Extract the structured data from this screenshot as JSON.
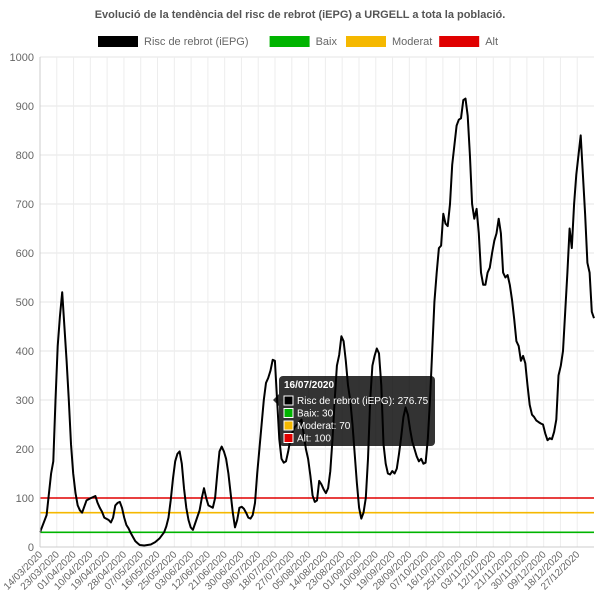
{
  "chart_data": {
    "type": "line",
    "title": "Evolució de la tendència del risc de rebrot (iEPG) a URGELL a tota la població.",
    "ylim": [
      0,
      1000
    ],
    "y_ticks": [
      0,
      100,
      200,
      300,
      400,
      500,
      600,
      700,
      800,
      900,
      1000
    ],
    "x_tick_labels": [
      "14/03/2020",
      "23/03/2020",
      "01/04/2020",
      "10/04/2020",
      "19/04/2020",
      "28/04/2020",
      "07/05/2020",
      "16/05/2020",
      "25/05/2020",
      "03/06/2020",
      "12/06/2020",
      "21/06/2020",
      "30/06/2020",
      "09/07/2020",
      "18/07/2020",
      "27/07/2020",
      "05/08/2020",
      "14/08/2020",
      "23/08/2020",
      "01/09/2020",
      "10/09/2020",
      "19/09/2020",
      "28/09/2020",
      "07/10/2020",
      "16/10/2020",
      "25/10/2020",
      "03/11/2020",
      "12/11/2020",
      "21/11/2020",
      "30/11/2020",
      "09/12/2020",
      "18/12/2020",
      "27/12/2020"
    ],
    "grid": true,
    "legend_position": "top",
    "series": [
      {
        "name": "Risc de rebrot (iEPG)",
        "color": "#000000",
        "values": [
          [
            0,
            30
          ],
          [
            3,
            65
          ],
          [
            5,
            150
          ],
          [
            6,
            175
          ],
          [
            7,
            300
          ],
          [
            8,
            410
          ],
          [
            9,
            470
          ],
          [
            10,
            520
          ],
          [
            11,
            450
          ],
          [
            12,
            380
          ],
          [
            13,
            300
          ],
          [
            14,
            210
          ],
          [
            15,
            150
          ],
          [
            16,
            110
          ],
          [
            17,
            85
          ],
          [
            18,
            75
          ],
          [
            19,
            70
          ],
          [
            21,
            95
          ],
          [
            23,
            100
          ],
          [
            25,
            104
          ],
          [
            26,
            90
          ],
          [
            27,
            80
          ],
          [
            28,
            72
          ],
          [
            29,
            60
          ],
          [
            31,
            55
          ],
          [
            32,
            50
          ],
          [
            33,
            60
          ],
          [
            34,
            85
          ],
          [
            35,
            90
          ],
          [
            36,
            92
          ],
          [
            37,
            80
          ],
          [
            38,
            60
          ],
          [
            39,
            45
          ],
          [
            40,
            38
          ],
          [
            41,
            28
          ],
          [
            42,
            20
          ],
          [
            43,
            12
          ],
          [
            44,
            8
          ],
          [
            45,
            4
          ],
          [
            47,
            3
          ],
          [
            50,
            5
          ],
          [
            52,
            10
          ],
          [
            54,
            18
          ],
          [
            56,
            30
          ],
          [
            57,
            42
          ],
          [
            58,
            60
          ],
          [
            59,
            95
          ],
          [
            60,
            140
          ],
          [
            61,
            175
          ],
          [
            62,
            190
          ],
          [
            63,
            195
          ],
          [
            64,
            170
          ],
          [
            65,
            120
          ],
          [
            66,
            80
          ],
          [
            67,
            55
          ],
          [
            68,
            40
          ],
          [
            69,
            35
          ],
          [
            70,
            48
          ],
          [
            72,
            75
          ],
          [
            73,
            100
          ],
          [
            74,
            120
          ],
          [
            75,
            100
          ],
          [
            76,
            85
          ],
          [
            78,
            80
          ],
          [
            79,
            100
          ],
          [
            80,
            150
          ],
          [
            81,
            195
          ],
          [
            82,
            205
          ],
          [
            83,
            195
          ],
          [
            84,
            180
          ],
          [
            85,
            150
          ],
          [
            86,
            110
          ],
          [
            87,
            70
          ],
          [
            88,
            40
          ],
          [
            89,
            55
          ],
          [
            90,
            80
          ],
          [
            91,
            82
          ],
          [
            92,
            78
          ],
          [
            93,
            70
          ],
          [
            94,
            60
          ],
          [
            95,
            58
          ],
          [
            96,
            65
          ],
          [
            97,
            90
          ],
          [
            98,
            150
          ],
          [
            99,
            200
          ],
          [
            100,
            250
          ],
          [
            101,
            300
          ],
          [
            102,
            335
          ],
          [
            103,
            345
          ],
          [
            104,
            360
          ],
          [
            105,
            382
          ],
          [
            106,
            380
          ],
          [
            107,
            300
          ],
          [
            108,
            220
          ],
          [
            109,
            180
          ],
          [
            110,
            172
          ],
          [
            111,
            175
          ],
          [
            112,
            195
          ],
          [
            113,
            220
          ],
          [
            114,
            235
          ],
          [
            115,
            245
          ],
          [
            116,
            250
          ],
          [
            117,
            255
          ],
          [
            118,
            260
          ],
          [
            119,
            230
          ],
          [
            120,
            200
          ],
          [
            121,
            180
          ],
          [
            122,
            145
          ],
          [
            123,
            105
          ],
          [
            124,
            92
          ],
          [
            125,
            95
          ],
          [
            126,
            135
          ],
          [
            127,
            128
          ],
          [
            128,
            118
          ],
          [
            129,
            110
          ],
          [
            130,
            120
          ],
          [
            131,
            155
          ],
          [
            132,
            220
          ],
          [
            133,
            300
          ],
          [
            134,
            370
          ],
          [
            135,
            392
          ],
          [
            136,
            430
          ],
          [
            137,
            420
          ],
          [
            138,
            380
          ],
          [
            139,
            330
          ],
          [
            140,
            300
          ],
          [
            141,
            250
          ],
          [
            142,
            190
          ],
          [
            143,
            130
          ],
          [
            144,
            80
          ],
          [
            145,
            58
          ],
          [
            146,
            70
          ],
          [
            147,
            100
          ],
          [
            148,
            180
          ],
          [
            149,
            300
          ],
          [
            150,
            370
          ],
          [
            151,
            390
          ],
          [
            152,
            405
          ],
          [
            153,
            395
          ],
          [
            154,
            330
          ],
          [
            155,
            210
          ],
          [
            156,
            170
          ],
          [
            157,
            150
          ],
          [
            158,
            148
          ],
          [
            159,
            155
          ],
          [
            160,
            150
          ],
          [
            161,
            160
          ],
          [
            162,
            190
          ],
          [
            163,
            225
          ],
          [
            164,
            265
          ],
          [
            165,
            285
          ],
          [
            166,
            270
          ],
          [
            167,
            240
          ],
          [
            168,
            215
          ],
          [
            169,
            200
          ],
          [
            170,
            185
          ],
          [
            171,
            175
          ],
          [
            172,
            180
          ],
          [
            173,
            170
          ],
          [
            174,
            172
          ],
          [
            175,
            220
          ],
          [
            176,
            300
          ],
          [
            177,
            400
          ],
          [
            178,
            500
          ],
          [
            179,
            560
          ],
          [
            180,
            610
          ],
          [
            181,
            615
          ],
          [
            182,
            680
          ],
          [
            183,
            660
          ],
          [
            184,
            655
          ],
          [
            185,
            700
          ],
          [
            186,
            780
          ],
          [
            187,
            820
          ],
          [
            188,
            860
          ],
          [
            189,
            872
          ],
          [
            190,
            875
          ],
          [
            191,
            912
          ],
          [
            192,
            915
          ],
          [
            193,
            880
          ],
          [
            194,
            800
          ],
          [
            195,
            700
          ],
          [
            196,
            670
          ],
          [
            197,
            690
          ],
          [
            198,
            640
          ],
          [
            199,
            560
          ],
          [
            200,
            535
          ],
          [
            201,
            535
          ],
          [
            202,
            560
          ],
          [
            203,
            570
          ],
          [
            204,
            600
          ],
          [
            205,
            625
          ],
          [
            206,
            640
          ],
          [
            207,
            670
          ],
          [
            208,
            640
          ],
          [
            209,
            560
          ],
          [
            210,
            550
          ],
          [
            211,
            555
          ],
          [
            212,
            535
          ],
          [
            213,
            505
          ],
          [
            214,
            465
          ],
          [
            215,
            420
          ],
          [
            216,
            410
          ],
          [
            217,
            380
          ],
          [
            218,
            390
          ],
          [
            219,
            375
          ],
          [
            220,
            330
          ],
          [
            221,
            290
          ],
          [
            222,
            270
          ],
          [
            223,
            265
          ],
          [
            224,
            258
          ],
          [
            225,
            255
          ],
          [
            226,
            252
          ],
          [
            227,
            250
          ],
          [
            228,
            232
          ],
          [
            229,
            218
          ],
          [
            230,
            222
          ],
          [
            231,
            220
          ],
          [
            232,
            235
          ],
          [
            233,
            260
          ],
          [
            234,
            350
          ],
          [
            235,
            370
          ],
          [
            236,
            400
          ],
          [
            237,
            480
          ],
          [
            238,
            560
          ],
          [
            239,
            650
          ],
          [
            240,
            610
          ],
          [
            241,
            700
          ],
          [
            242,
            760
          ],
          [
            243,
            800
          ],
          [
            244,
            840
          ],
          [
            245,
            760
          ],
          [
            246,
            680
          ],
          [
            247,
            580
          ],
          [
            248,
            560
          ],
          [
            249,
            480
          ],
          [
            250,
            467
          ]
        ]
      },
      {
        "name": "Baix",
        "color": "#00b400",
        "values": [
          [
            0,
            30
          ],
          [
            250,
            30
          ]
        ]
      },
      {
        "name": "Moderat",
        "color": "#f5b800",
        "values": [
          [
            0,
            70
          ],
          [
            250,
            70
          ]
        ]
      },
      {
        "name": "Alt",
        "color": "#e00000",
        "values": [
          [
            0,
            100
          ],
          [
            250,
            100
          ]
        ]
      }
    ],
    "tooltip": {
      "title": "16/07/2020",
      "items": [
        {
          "color": "#000000",
          "text": "Risc de rebrot (iEPG): 276.75"
        },
        {
          "color": "#00b400",
          "text": "Baix: 30"
        },
        {
          "color": "#f5b800",
          "text": "Moderat: 70"
        },
        {
          "color": "#e00000",
          "text": "Alt: 100"
        }
      ]
    }
  }
}
